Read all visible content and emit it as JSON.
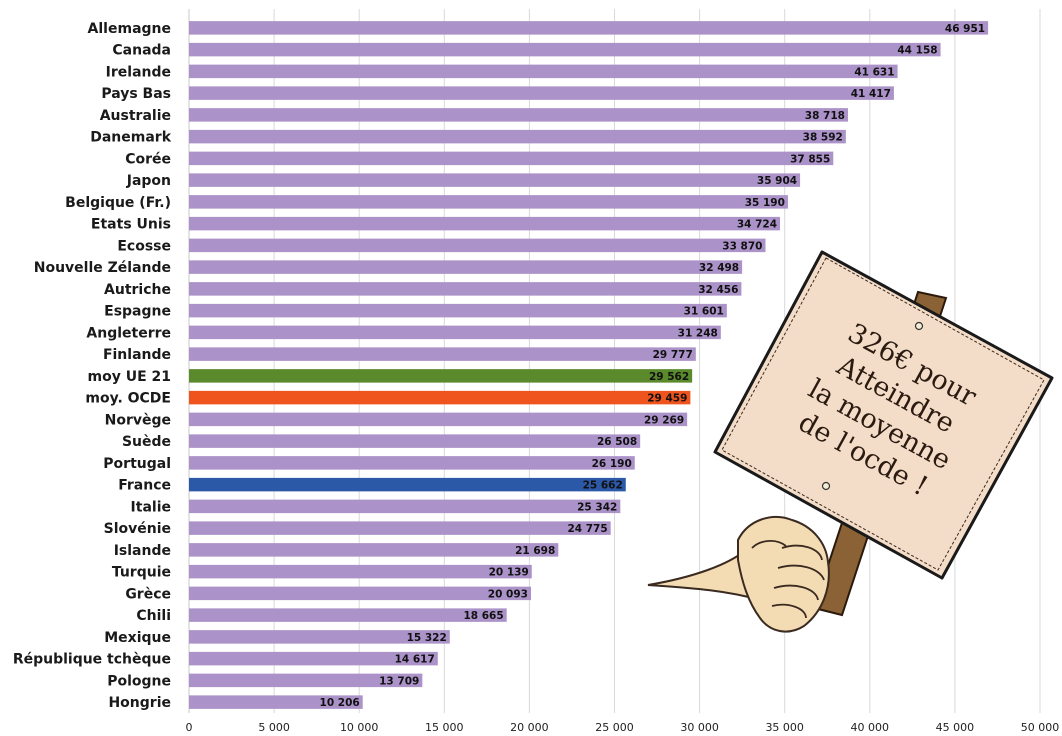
{
  "chart_data": {
    "type": "bar",
    "orientation": "horizontal",
    "categories": [
      "Allemagne",
      "Canada",
      "Irelande",
      "Pays Bas",
      "Australie",
      "Danemark",
      "Corée",
      "Japon",
      "Belgique (Fr.)",
      "Etats Unis",
      "Ecosse",
      "Nouvelle Zélande",
      "Autriche",
      "Espagne",
      "Angleterre",
      "Finlande",
      "moy UE 21",
      "moy. OCDE",
      "Norvège",
      "Suède",
      "Portugal",
      "France",
      "Italie",
      "Slovénie",
      "Islande",
      "Turquie",
      "Grèce",
      "Chili",
      "Mexique",
      "République tchèque",
      "Pologne",
      "Hongrie"
    ],
    "values": [
      46951,
      44158,
      41631,
      41417,
      38718,
      38592,
      37855,
      35904,
      35190,
      34724,
      33870,
      32498,
      32456,
      31601,
      31248,
      29777,
      29562,
      29459,
      29269,
      26508,
      26190,
      25662,
      25342,
      24775,
      21698,
      20139,
      20093,
      18665,
      15322,
      14617,
      13709,
      10206
    ],
    "value_labels": [
      "46 951",
      "44 158",
      "41 631",
      "41 417",
      "38 718",
      "38 592",
      "37 855",
      "35 904",
      "35 190",
      "34 724",
      "33 870",
      "32 498",
      "32 456",
      "31 601",
      "31 248",
      "29 777",
      "29 562",
      "29 459",
      "29 269",
      "26 508",
      "26 190",
      "25 662",
      "25 342",
      "24 775",
      "21 698",
      "20 139",
      "20 093",
      "18 665",
      "15 322",
      "14 617",
      "13 709",
      "10 206"
    ],
    "xlim": [
      0,
      50000
    ],
    "xticks": [
      0,
      5000,
      10000,
      15000,
      20000,
      25000,
      30000,
      35000,
      40000,
      45000,
      50000
    ],
    "xtick_labels": [
      "0",
      "5 000",
      "10 000",
      "15 000",
      "20 000",
      "25 000",
      "30 000",
      "35 000",
      "40 000",
      "45 000",
      "50 000"
    ],
    "grid": "vertical",
    "title": "",
    "xlabel": "",
    "ylabel": "",
    "colors": {
      "default": "#ab92c9",
      "highlights": {
        "moy UE 21": "#5a8a2c",
        "moy. OCDE": "#f0541e",
        "France": "#2b59a8"
      },
      "gridline": "#d9d9d9"
    }
  },
  "annotation": {
    "sign_lines": [
      "326€ pour",
      "Atteindre",
      "la moyenne",
      "de l'ocde !"
    ],
    "colors": {
      "sign_fill": "#f3ddc8",
      "sign_border": "#1a1a1a",
      "stick": "#8a6235",
      "hand": "#f3dcb4"
    },
    "icon": "hand-holding-sign-illustration"
  }
}
